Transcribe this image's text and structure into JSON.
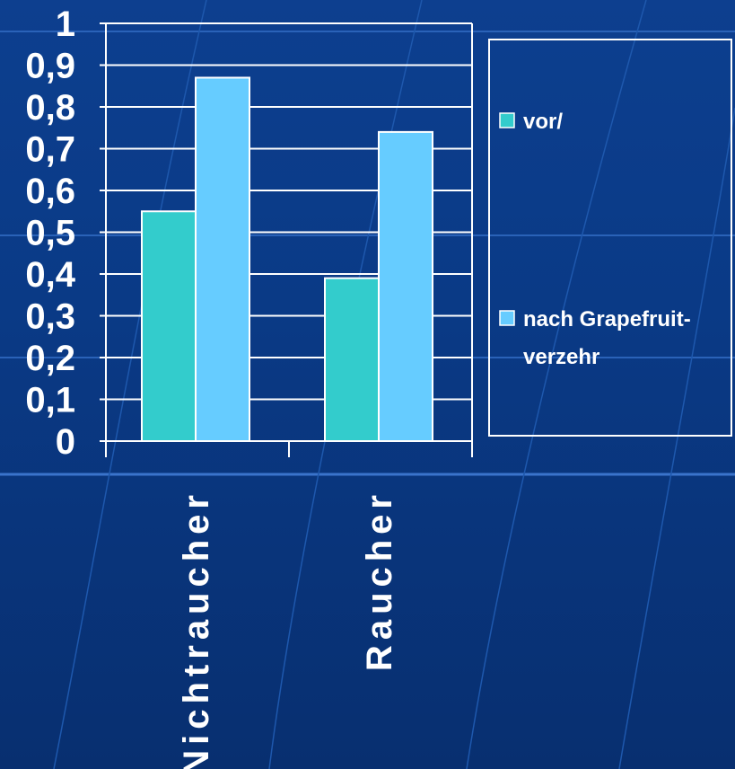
{
  "chart_data": {
    "type": "bar",
    "categories": [
      "Nichtraucher",
      "Raucher"
    ],
    "series": [
      {
        "name": "vor/",
        "values": [
          0.55,
          0.39
        ]
      },
      {
        "name": "nach Grapefruit-verzehr",
        "values": [
          0.87,
          0.74
        ]
      }
    ],
    "yticks": [
      "0",
      "0,1",
      "0,2",
      "0,3",
      "0,4",
      "0,5",
      "0,6",
      "0,7",
      "0,8",
      "0,9",
      "1"
    ],
    "ylim": [
      0,
      1
    ],
    "grid": true,
    "legend_position": "right",
    "legend": [
      {
        "lines": [
          "vor/"
        ]
      },
      {
        "lines": [
          "nach Grapefruit-",
          "verzehr"
        ]
      }
    ],
    "colors": {
      "series": [
        "#33cccc",
        "#66ccff"
      ],
      "axis": "#ffffff",
      "background": "#0a3a86"
    }
  }
}
